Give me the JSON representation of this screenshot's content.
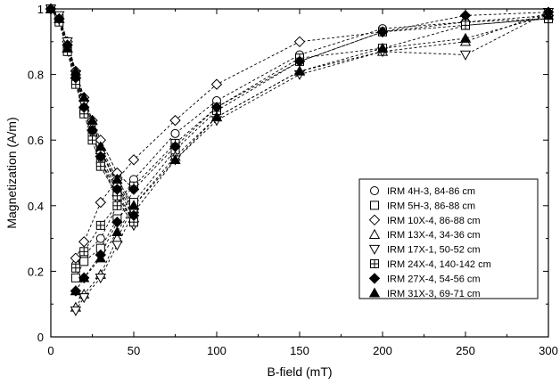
{
  "chart_data": {
    "type": "line",
    "title": "",
    "xlabel": "B-field (mT)",
    "ylabel": "Magnetization (A/m)",
    "xlim": [
      0,
      300
    ],
    "ylim": [
      0,
      1
    ],
    "xticks": [
      "0",
      "50",
      "100",
      "150",
      "200",
      "250",
      "300"
    ],
    "yticks": [
      "0",
      "0.2",
      "0.4",
      "0.6",
      "0.8",
      "1"
    ],
    "grid": false,
    "legend_position": "lower-right",
    "line_style": "dashed",
    "series": [
      {
        "name": "IRM 4H-3, 84-86 cm",
        "marker": "circle-open",
        "demag": {
          "x": [
            0,
            5,
            10,
            15,
            20,
            25,
            30,
            40,
            50
          ],
          "y": [
            1,
            0.97,
            0.89,
            0.8,
            0.72,
            0.65,
            0.57,
            0.46,
            0.38
          ]
        },
        "irm": {
          "x": [
            15,
            20,
            30,
            40,
            50,
            75,
            100,
            150,
            200,
            250,
            300
          ],
          "y": [
            0.22,
            0.25,
            0.3,
            0.4,
            0.48,
            0.62,
            0.72,
            0.86,
            0.94,
            0.96,
            0.97
          ]
        }
      },
      {
        "name": "IRM 5H-3, 86-88 cm",
        "marker": "square-open",
        "demag": {
          "x": [
            0,
            5,
            10,
            15,
            20,
            25,
            30,
            40,
            50
          ],
          "y": [
            1,
            0.97,
            0.88,
            0.78,
            0.69,
            0.62,
            0.54,
            0.44,
            0.35
          ]
        },
        "irm": {
          "x": [
            15,
            20,
            30,
            40,
            50,
            75,
            100,
            150,
            200,
            250,
            300
          ],
          "y": [
            0.18,
            0.23,
            0.27,
            0.36,
            0.41,
            0.57,
            0.69,
            0.84,
            0.93,
            0.95,
            0.97
          ]
        }
      },
      {
        "name": "IRM 10X-4, 86-88 cm",
        "marker": "diamond-open",
        "demag": {
          "x": [
            0,
            5,
            10,
            15,
            20,
            25,
            30,
            40,
            50
          ],
          "y": [
            1,
            0.97,
            0.9,
            0.81,
            0.73,
            0.66,
            0.6,
            0.5,
            0.45
          ]
        },
        "irm": {
          "x": [
            15,
            20,
            30,
            40,
            50,
            75,
            100,
            150,
            200,
            250,
            300
          ],
          "y": [
            0.24,
            0.29,
            0.41,
            0.48,
            0.54,
            0.66,
            0.77,
            0.9,
            0.93,
            0.96,
            0.98
          ]
        }
      },
      {
        "name": "IRM 13X-4, 34-36 cm",
        "marker": "triangle-up-open",
        "demag": {
          "x": [
            0,
            5,
            10,
            15,
            20,
            25,
            30,
            40,
            50
          ],
          "y": [
            1,
            0.97,
            0.88,
            0.8,
            0.71,
            0.64,
            0.57,
            0.47,
            0.39
          ]
        },
        "irm": {
          "x": [
            15,
            20,
            30,
            40,
            50,
            75,
            100,
            150,
            200,
            250,
            300
          ],
          "y": [
            0.09,
            0.13,
            0.19,
            0.3,
            0.4,
            0.55,
            0.67,
            0.81,
            0.87,
            0.9,
            0.99
          ]
        }
      },
      {
        "name": "IRM 17X-1, 50-52 cm",
        "marker": "triangle-down-open",
        "demag": {
          "x": [
            0,
            5,
            10,
            15,
            20,
            25,
            30,
            40,
            50
          ],
          "y": [
            1,
            0.98,
            0.9,
            0.8,
            0.71,
            0.62,
            0.54,
            0.42,
            0.34
          ]
        },
        "irm": {
          "x": [
            15,
            20,
            30,
            40,
            50,
            75,
            100,
            150,
            200,
            250,
            300
          ],
          "y": [
            0.08,
            0.12,
            0.18,
            0.28,
            0.38,
            0.54,
            0.66,
            0.8,
            0.87,
            0.86,
            0.99
          ]
        }
      },
      {
        "name": "IRM 24X-4, 140-142 cm",
        "marker": "square-crossed",
        "demag": {
          "x": [
            0,
            5,
            10,
            15,
            20,
            25,
            30,
            40,
            50
          ],
          "y": [
            1,
            0.96,
            0.87,
            0.77,
            0.68,
            0.6,
            0.52,
            0.43,
            0.35
          ]
        },
        "irm": {
          "x": [
            15,
            20,
            30,
            40,
            50,
            75,
            100,
            150,
            200,
            250,
            300
          ],
          "y": [
            0.21,
            0.26,
            0.34,
            0.4,
            0.46,
            0.59,
            0.7,
            0.85,
            0.88,
            0.95,
            0.97
          ]
        }
      },
      {
        "name": "IRM 27X-4, 54-56 cm",
        "marker": "diamond-filled",
        "demag": {
          "x": [
            0,
            5,
            10,
            15,
            20,
            25,
            30,
            40,
            50
          ],
          "y": [
            1,
            0.97,
            0.89,
            0.79,
            0.7,
            0.63,
            0.55,
            0.45,
            0.37
          ]
        },
        "irm": {
          "x": [
            15,
            20,
            30,
            40,
            50,
            75,
            100,
            150,
            200,
            250,
            300
          ],
          "y": [
            0.14,
            0.18,
            0.25,
            0.35,
            0.45,
            0.58,
            0.7,
            0.84,
            0.93,
            0.98,
            0.99
          ]
        }
      },
      {
        "name": "IRM 31X-3, 69-71 cm",
        "marker": "triangle-up-filled",
        "demag": {
          "x": [
            0,
            5,
            10,
            15,
            20,
            25,
            30,
            40,
            50
          ],
          "y": [
            1,
            0.97,
            0.88,
            0.81,
            0.73,
            0.66,
            0.58,
            0.48,
            0.4
          ]
        },
        "irm": {
          "x": [
            15,
            20,
            30,
            40,
            50,
            75,
            100,
            150,
            200,
            250,
            300
          ],
          "y": [
            0.14,
            0.18,
            0.24,
            0.32,
            0.4,
            0.54,
            0.67,
            0.81,
            0.88,
            0.91,
            0.98
          ]
        }
      }
    ]
  }
}
